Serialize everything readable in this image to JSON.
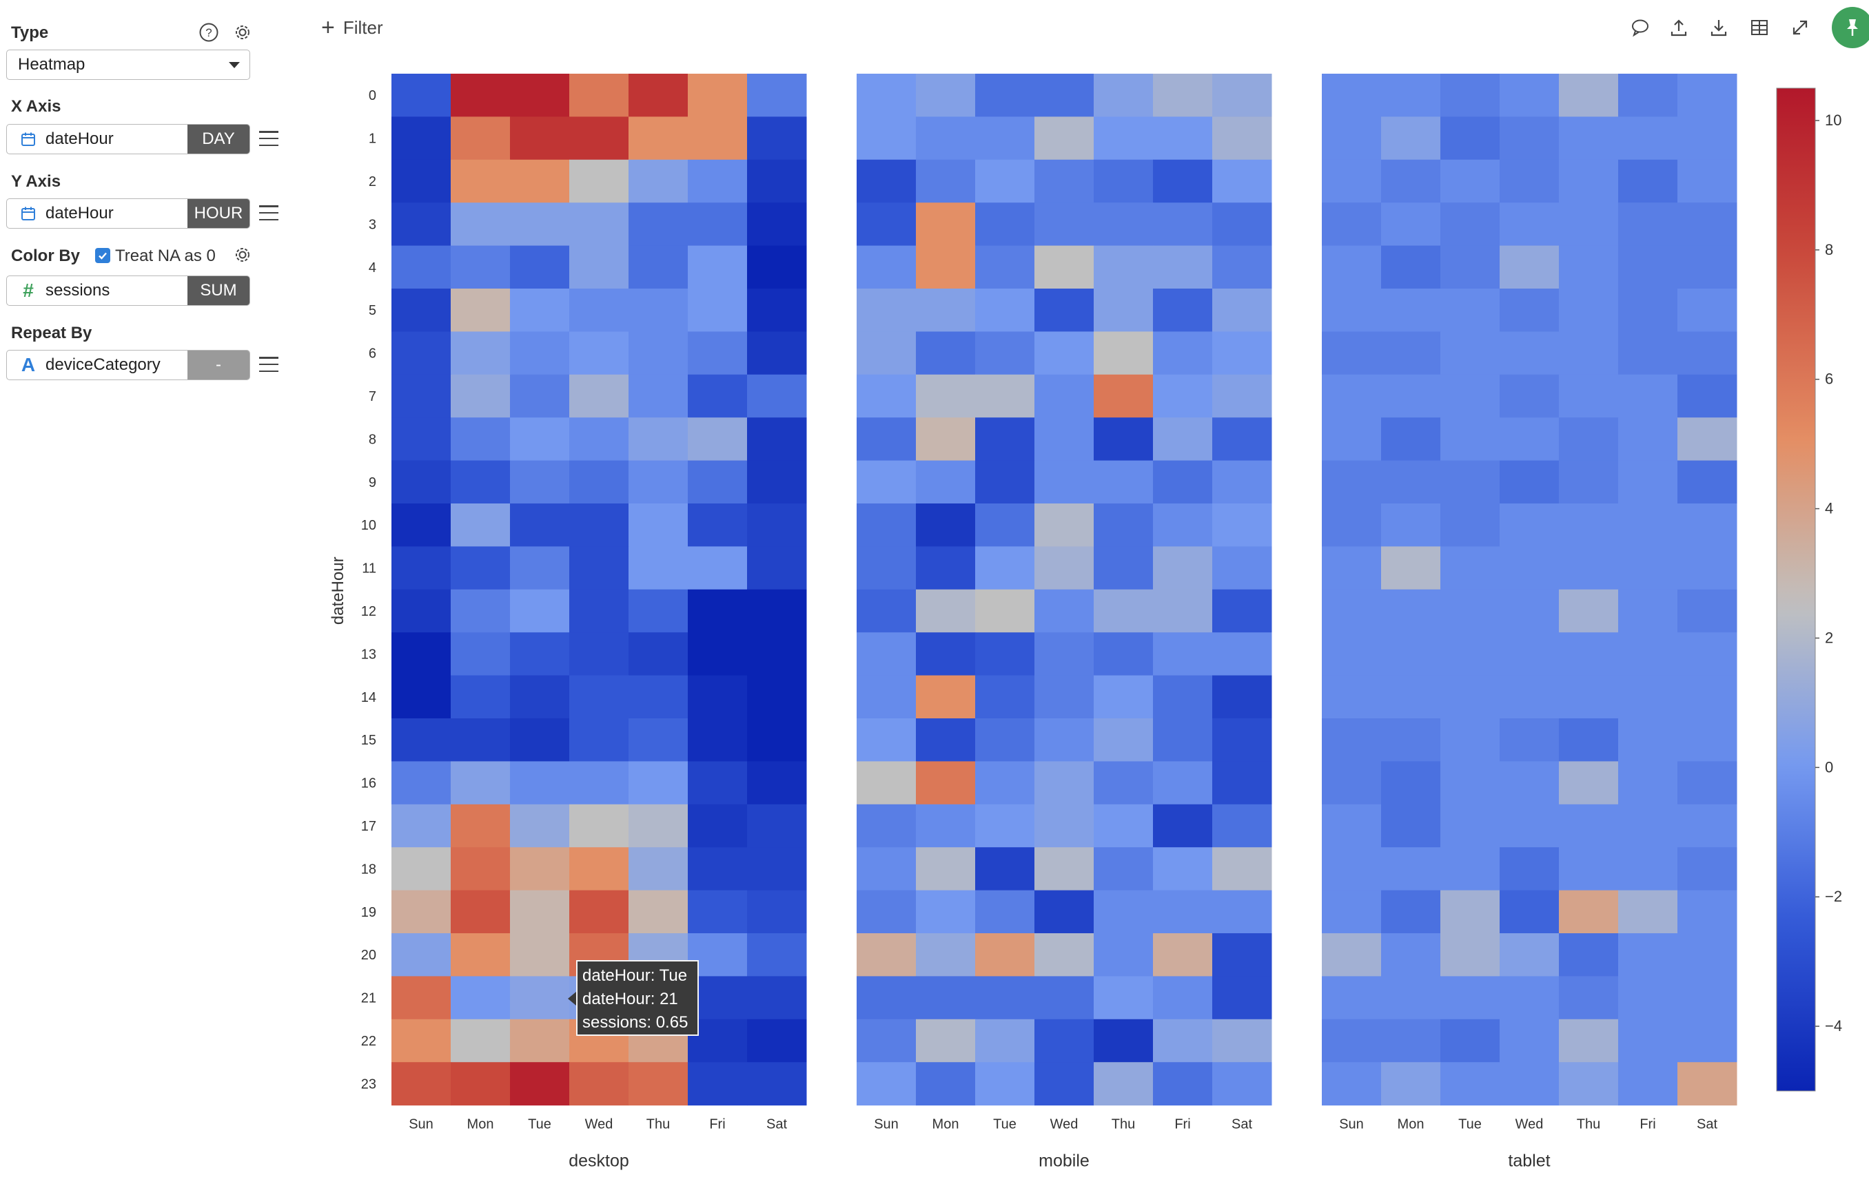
{
  "sidebar": {
    "type": {
      "label": "Type",
      "value": "Heatmap"
    },
    "x_axis": {
      "label": "X Axis",
      "field": "dateHour",
      "agg": "DAY"
    },
    "y_axis": {
      "label": "Y Axis",
      "field": "dateHour",
      "agg": "HOUR"
    },
    "color_by": {
      "label": "Color By",
      "treat_na": "Treat NA as 0",
      "treat_na_checked": true,
      "field": "sessions",
      "agg": "SUM"
    },
    "repeat_by": {
      "label": "Repeat By",
      "field": "deviceCategory",
      "agg": "-"
    }
  },
  "toolbar": {
    "filter_label": "Filter",
    "icons": [
      "comment-icon",
      "upload-icon",
      "download-icon",
      "table-icon",
      "expand-icon",
      "pin-icon"
    ]
  },
  "tooltip": {
    "line1": "dateHour: Tue",
    "line2": "dateHour: 21",
    "line3": "sessions: 0.65"
  },
  "colors": {
    "high": "#b2182b",
    "mid": "#c0c0c0",
    "low": "#0a24b4",
    "accent": "#3fa15c",
    "checkbox": "#2f7fd9"
  },
  "chart_data": {
    "type": "heatmap",
    "xlabel": "",
    "ylabel": "dateHour",
    "colorbar": {
      "ticks": [
        10,
        8,
        6,
        4,
        2,
        0,
        -2,
        -4
      ],
      "range": [
        -5,
        10.5
      ]
    },
    "categories": [
      "Sun",
      "Mon",
      "Tue",
      "Wed",
      "Thu",
      "Fri",
      "Sat"
    ],
    "y": [
      "0",
      "1",
      "2",
      "3",
      "4",
      "5",
      "6",
      "7",
      "8",
      "9",
      "10",
      "11",
      "12",
      "13",
      "14",
      "15",
      "16",
      "17",
      "18",
      "19",
      "20",
      "21",
      "22",
      "23"
    ],
    "series": [
      {
        "name": "desktop",
        "values": [
          [
            -2.5,
            10,
            10,
            6,
            9,
            5,
            -1
          ],
          [
            -4,
            6,
            9,
            9,
            5,
            5,
            -3.5
          ],
          [
            -4,
            5,
            5,
            2.5,
            0.5,
            -0.5,
            -4
          ],
          [
            -3.5,
            0.5,
            0.5,
            0.5,
            -1.5,
            -1.5,
            -4.5
          ],
          [
            -1.5,
            -1,
            -2,
            0.5,
            -1.5,
            0,
            -5
          ],
          [
            -3.5,
            3,
            0,
            -0.5,
            -0.5,
            0,
            -4.5
          ],
          [
            -3,
            0.5,
            -0.5,
            0,
            -0.5,
            -1,
            -4
          ],
          [
            -3,
            1,
            -1,
            1.5,
            -0.5,
            -2.5,
            -1.5
          ],
          [
            -3,
            -1,
            0,
            -0.5,
            0.5,
            1,
            -4
          ],
          [
            -3.5,
            -2.5,
            -1,
            -1.5,
            -0.5,
            -1.5,
            -4
          ],
          [
            -4.5,
            0.5,
            -3,
            -3,
            0,
            -3,
            -3.5
          ],
          [
            -3.5,
            -2.5,
            -1,
            -3,
            0,
            0,
            -3.5
          ],
          [
            -4,
            -1,
            0,
            -3,
            -2,
            -5,
            -5
          ],
          [
            -5,
            -1.5,
            -2.5,
            -3,
            -3.5,
            -5,
            -5.5
          ],
          [
            -5.5,
            -2.5,
            -3.5,
            -2.5,
            -2.5,
            -4.5,
            -5.5
          ],
          [
            -3.5,
            -3.5,
            -4,
            -2.5,
            -2,
            -4.5,
            -5
          ],
          [
            -1,
            0.5,
            -0.5,
            -0.5,
            0,
            -3.5,
            -4.5
          ],
          [
            0.5,
            6,
            1,
            2.5,
            2,
            -4,
            -3.5
          ],
          [
            2.5,
            6.5,
            4,
            5,
            1,
            -3.5,
            -3.5
          ],
          [
            3.5,
            7.5,
            3,
            7.5,
            3,
            -2.5,
            -3
          ],
          [
            0.5,
            5,
            3,
            6.5,
            1,
            -0.5,
            -2
          ],
          [
            6.5,
            0,
            0.65,
            0.5,
            0.5,
            -3.5,
            -3.5
          ],
          [
            5,
            2.5,
            4,
            5,
            4,
            -4,
            -4.5
          ],
          [
            7.5,
            8,
            10,
            7,
            6.5,
            -3.5,
            -3.5
          ]
        ]
      },
      {
        "name": "mobile",
        "values": [
          [
            0,
            0.5,
            -1.5,
            -1.5,
            0.5,
            1.5,
            1
          ],
          [
            0,
            -0.5,
            -0.5,
            2,
            0,
            0,
            1.5
          ],
          [
            -3,
            -1,
            0,
            -1,
            -1.5,
            -2.5,
            0
          ],
          [
            -2.5,
            5,
            -1.5,
            -1,
            -1,
            -1,
            -1.5
          ],
          [
            -0.5,
            5,
            -1,
            2.5,
            0.5,
            0.5,
            -1
          ],
          [
            0.5,
            0.5,
            0,
            -2.5,
            0.5,
            -2,
            0.5
          ],
          [
            0.5,
            -1.5,
            -1,
            0,
            2.5,
            -0.5,
            0
          ],
          [
            0,
            2,
            2,
            -0.5,
            6,
            0,
            0.5
          ],
          [
            -1.5,
            3,
            -3,
            -0.5,
            -3.5,
            0.5,
            -2
          ],
          [
            0,
            -0.5,
            -3,
            -0.5,
            -0.5,
            -1.5,
            -0.5
          ],
          [
            -1.5,
            -4,
            -1.5,
            2,
            -1.5,
            -0.5,
            0
          ],
          [
            -1.5,
            -3,
            0,
            1.5,
            -1.5,
            1,
            -0.5
          ],
          [
            -2,
            2,
            2.5,
            -0.5,
            1,
            1,
            -2.5
          ],
          [
            -0.5,
            -3,
            -2.5,
            -1,
            -1.5,
            -0.5,
            -0.5
          ],
          [
            -0.5,
            5,
            -2,
            -1,
            0,
            -1.5,
            -3.5
          ],
          [
            0,
            -3,
            -1.5,
            -0.5,
            0.5,
            -1.5,
            -3
          ],
          [
            2.5,
            6,
            -0.5,
            0.5,
            -1,
            -0.5,
            -3
          ],
          [
            -1,
            -0.5,
            0,
            0.5,
            0,
            -3.5,
            -1.5
          ],
          [
            -0.5,
            2,
            -3.5,
            2,
            -1,
            0,
            2
          ],
          [
            -1,
            0,
            -1,
            -3.5,
            -0.5,
            -0.5,
            -0.5
          ],
          [
            3.5,
            1,
            4.5,
            2,
            -0.5,
            3.5,
            -3
          ],
          [
            -1.5,
            -1.5,
            -1.5,
            -1.5,
            0,
            -0.5,
            -3
          ],
          [
            -1,
            2,
            0.5,
            -2.5,
            -4,
            0.5,
            1
          ],
          [
            0,
            -1.5,
            0,
            -2.5,
            1,
            -1.5,
            -0.5
          ]
        ]
      },
      {
        "name": "tablet",
        "values": [
          [
            -0.5,
            -0.5,
            -1,
            -0.5,
            1.5,
            -1,
            -0.5
          ],
          [
            -0.5,
            0.5,
            -1.5,
            -1,
            -0.5,
            -0.5,
            -0.5
          ],
          [
            -0.5,
            -1,
            -0.5,
            -1,
            -0.5,
            -1.5,
            -0.5
          ],
          [
            -1,
            -0.5,
            -1,
            -0.5,
            -0.5,
            -1,
            -1
          ],
          [
            -0.5,
            -1.5,
            -1,
            1,
            -0.5,
            -1,
            -1
          ],
          [
            -0.5,
            -0.5,
            -0.5,
            -1,
            -0.5,
            -1,
            -0.5
          ],
          [
            -1,
            -1,
            -0.5,
            -0.5,
            -0.5,
            -1,
            -1
          ],
          [
            -0.5,
            -0.5,
            -0.5,
            -1,
            -0.5,
            -0.5,
            -1.5
          ],
          [
            -0.5,
            -1.5,
            -0.5,
            -0.5,
            -1,
            -0.5,
            1.5
          ],
          [
            -1,
            -1,
            -1,
            -1.5,
            -1,
            -0.5,
            -1.5
          ],
          [
            -1,
            -0.5,
            -1,
            -0.5,
            -0.5,
            -0.5,
            -0.5
          ],
          [
            -0.5,
            2,
            -0.5,
            -0.5,
            -0.5,
            -0.5,
            -0.5
          ],
          [
            -0.5,
            -0.5,
            -0.5,
            -0.5,
            1.5,
            -0.5,
            -1
          ],
          [
            -0.5,
            -0.5,
            -0.5,
            -0.5,
            -0.5,
            -0.5,
            -0.5
          ],
          [
            -0.5,
            -0.5,
            -0.5,
            -0.5,
            -0.5,
            -0.5,
            -0.5
          ],
          [
            -1,
            -1,
            -0.5,
            -1,
            -1.5,
            -0.5,
            -0.5
          ],
          [
            -1,
            -1.5,
            -0.5,
            -0.5,
            1.5,
            -0.5,
            -1
          ],
          [
            -0.5,
            -1.5,
            -0.5,
            -0.5,
            -0.5,
            -0.5,
            -0.5
          ],
          [
            -0.5,
            -0.5,
            -0.5,
            -1.5,
            -0.5,
            -0.5,
            -1
          ],
          [
            -0.5,
            -1.5,
            1.5,
            -2,
            4,
            1.5,
            -0.5
          ],
          [
            1.5,
            -0.5,
            1.5,
            0.5,
            -1.5,
            -0.5,
            -0.5
          ],
          [
            -0.5,
            -0.5,
            -0.5,
            -0.5,
            -1,
            -0.5,
            -0.5
          ],
          [
            -1,
            -1,
            -1.5,
            -0.5,
            1.5,
            -0.5,
            -0.5
          ],
          [
            -0.5,
            0.5,
            -0.5,
            -0.5,
            0.5,
            -0.5,
            4
          ]
        ]
      }
    ]
  }
}
